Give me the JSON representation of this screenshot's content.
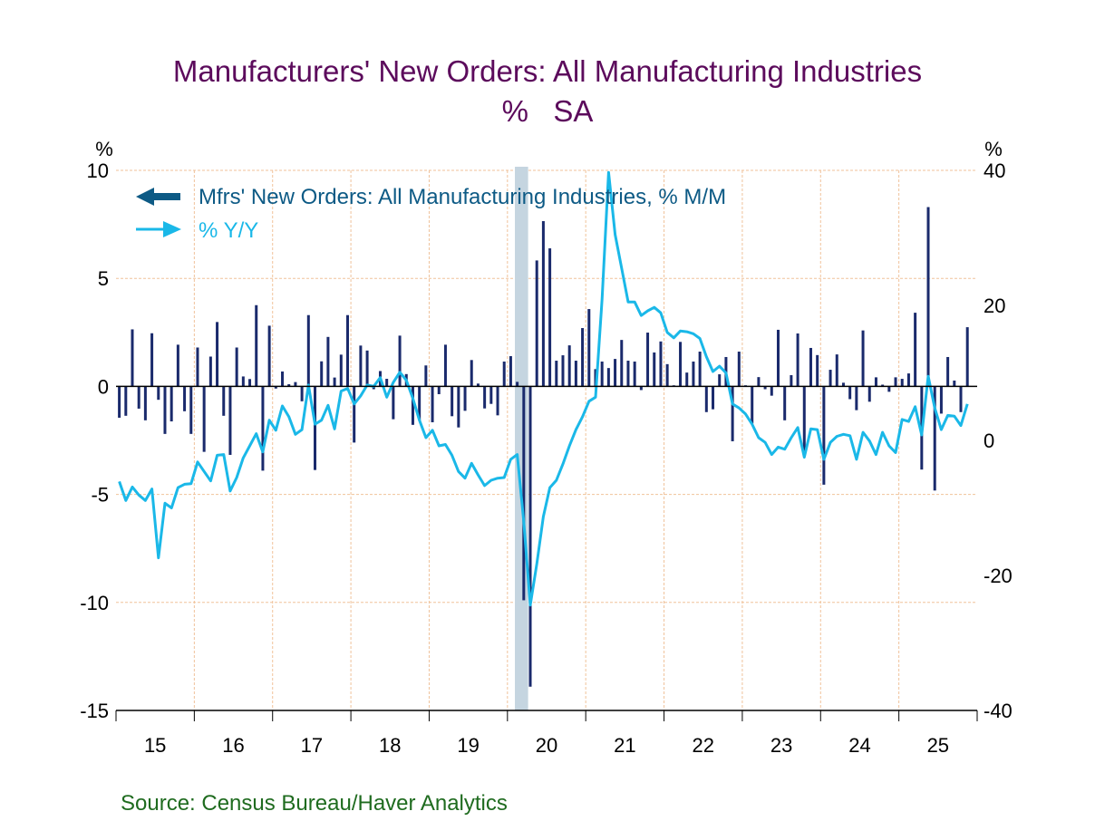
{
  "title_line1": "Manufacturers' New Orders: All Manufacturing Industries",
  "title_line2": "%   SA",
  "source": "Source:  Census Bureau/Haver Analytics",
  "chart_data": {
    "type": "bar+line",
    "x_start": "2015-01",
    "x_end": "2025-11",
    "frequency": "monthly",
    "x_tick_labels": [
      "15",
      "16",
      "17",
      "18",
      "19",
      "20",
      "21",
      "22",
      "23",
      "24",
      "25"
    ],
    "left_axis": {
      "unit_label": "%",
      "ylim": [
        -15,
        10
      ],
      "ticks": [
        10,
        5,
        0,
        -5,
        -10,
        -15
      ]
    },
    "right_axis": {
      "unit_label": "%",
      "ylim": [
        -40,
        40
      ],
      "ticks": [
        40,
        20,
        0,
        -20,
        -40
      ]
    },
    "grid": true,
    "legend_placement": "top-left",
    "recession_shading": {
      "start": "2020-02",
      "end": "2020-04",
      "color": "#c5d5e0"
    },
    "series": [
      {
        "name": "Mfrs' New Orders: All Manufacturing Industries, % M/M",
        "type": "bar",
        "axis": "left",
        "color": "#1a2a6c",
        "legend_arrow": "left",
        "values": [
          -1.45,
          -1.36,
          2.64,
          -1.03,
          -1.57,
          2.46,
          -0.62,
          -2.2,
          -1.62,
          1.93,
          -1.15,
          -2.2,
          1.8,
          -3.03,
          1.38,
          2.98,
          -1.36,
          -3.17,
          1.8,
          0.46,
          0.34,
          3.76,
          -3.9,
          2.81,
          -0.1,
          0.69,
          0.1,
          0.2,
          -0.69,
          3.3,
          -3.87,
          1.16,
          2.29,
          0.41,
          1.47,
          3.3,
          -2.6,
          1.89,
          1.66,
          -0.13,
          0.71,
          0.35,
          -1.52,
          2.35,
          0.57,
          -1.78,
          -1.57,
          0.97,
          -1.66,
          -0.36,
          1.93,
          -1.38,
          -1.9,
          -1.13,
          1.22,
          0.13,
          -1.02,
          -0.81,
          -1.34,
          1.15,
          1.4,
          0.21,
          -9.9,
          -13.9,
          5.83,
          7.65,
          6.39,
          1.19,
          1.44,
          1.9,
          1.19,
          2.7,
          3.58,
          0.8,
          1.15,
          0.85,
          1.27,
          2.15,
          1.19,
          1.15,
          -0.17,
          2.49,
          1.57,
          2.08,
          1.03,
          0.05,
          2.06,
          0.64,
          1.15,
          1.61,
          -1.19,
          -1.06,
          0.56,
          1.36,
          -2.54,
          1.61,
          0.05,
          -1.72,
          0.43,
          -0.13,
          -0.43,
          2.62,
          -1.57,
          0.52,
          2.45,
          -3.12,
          1.78,
          1.45,
          -4.55,
          0.77,
          1.48,
          0.17,
          -0.59,
          -1.1,
          2.59,
          -0.71,
          0.42,
          0.08,
          -0.25,
          0.42,
          0.35,
          0.6,
          3.41,
          -3.85,
          8.3,
          -4.82,
          -1.26,
          1.36,
          0.27,
          -1.19,
          2.74
        ]
      },
      {
        "name": "% Y/Y",
        "type": "line",
        "axis": "right",
        "color": "#1ab8e8",
        "legend_arrow": "right",
        "values": [
          -6.1,
          -8.9,
          -6.9,
          -8.1,
          -8.9,
          -7.2,
          -17.4,
          -9.3,
          -10.0,
          -7.0,
          -6.5,
          -6.4,
          -3.2,
          -4.6,
          -6.0,
          -2.2,
          -2.1,
          -7.5,
          -5.5,
          -2.6,
          -0.8,
          1.0,
          -1.7,
          3.0,
          1.5,
          5.1,
          3.5,
          0.9,
          1.6,
          8.2,
          2.4,
          3.0,
          5.2,
          1.7,
          7.3,
          7.7,
          5.4,
          6.6,
          8.2,
          8.0,
          9.3,
          6.4,
          8.6,
          10.1,
          8.9,
          6.2,
          3.0,
          0.4,
          1.5,
          -0.8,
          -0.6,
          -2.2,
          -4.6,
          -5.6,
          -3.4,
          -5.1,
          -6.7,
          -5.9,
          -5.6,
          -5.5,
          -2.8,
          -2.1,
          -12.0,
          -24.4,
          -18.3,
          -11.3,
          -7.0,
          -5.9,
          -3.5,
          -0.8,
          1.6,
          3.5,
          5.8,
          6.4,
          20.9,
          39.7,
          30.5,
          25.5,
          20.5,
          20.5,
          18.5,
          19.2,
          19.7,
          18.9,
          16.0,
          15.2,
          16.2,
          16.1,
          15.8,
          15.1,
          12.4,
          10.2,
          11.0,
          10.0,
          5.4,
          4.8,
          3.9,
          2.4,
          0.4,
          -0.3,
          -2.1,
          -1.0,
          -1.3,
          0.4,
          1.9,
          -2.5,
          1.7,
          1.6,
          -2.8,
          -0.3,
          0.6,
          0.9,
          0.7,
          -2.8,
          1.2,
          -0.1,
          -2.1,
          1.2,
          -0.8,
          -1.8,
          3.1,
          2.8,
          5.0,
          0.8,
          9.5,
          4.8,
          1.6,
          3.7,
          3.6,
          2.2,
          5.4
        ]
      }
    ]
  }
}
